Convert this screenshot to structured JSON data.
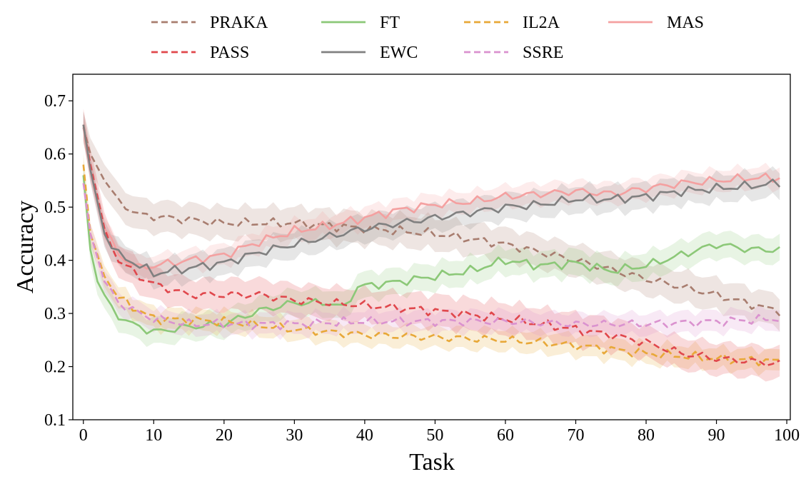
{
  "chart_data": {
    "type": "line",
    "title": "",
    "xlabel": "Task",
    "ylabel": "Accuracy",
    "xlim": [
      -1.5,
      100.5
    ],
    "ylim": [
      0.1,
      0.75
    ],
    "xticks": [
      0,
      10,
      20,
      30,
      40,
      50,
      60,
      70,
      80,
      90,
      100
    ],
    "xtick_labels": [
      "0",
      "10",
      "20",
      "30",
      "40",
      "50",
      "60",
      "70",
      "80",
      "90",
      "100"
    ],
    "yticks": [
      0.1,
      0.2,
      0.3,
      0.4,
      0.5,
      0.6,
      0.7
    ],
    "ytick_labels": [
      "0.1",
      "0.2",
      "0.3",
      "0.4",
      "0.5",
      "0.6",
      "0.7"
    ],
    "grid": false,
    "legend_placement": "top, outside plot, 4 columns",
    "shaded_band": "spread around each series mean",
    "series": [
      {
        "name": "PRAKA",
        "color": "#a87d6f",
        "dash": "dashed",
        "band": 0.03,
        "anchors": [
          [
            0,
            0.65
          ],
          [
            1,
            0.6
          ],
          [
            3,
            0.55
          ],
          [
            5,
            0.51
          ],
          [
            8,
            0.485
          ],
          [
            12,
            0.48
          ],
          [
            20,
            0.47
          ],
          [
            30,
            0.47
          ],
          [
            40,
            0.46
          ],
          [
            50,
            0.45
          ],
          [
            60,
            0.43
          ],
          [
            70,
            0.4
          ],
          [
            80,
            0.365
          ],
          [
            90,
            0.335
          ],
          [
            97,
            0.31
          ],
          [
            99,
            0.305
          ]
        ]
      },
      {
        "name": "FT",
        "color": "#8cc878",
        "dash": "solid",
        "band": 0.025,
        "anchors": [
          [
            0,
            0.56
          ],
          [
            1,
            0.42
          ],
          [
            2,
            0.36
          ],
          [
            4,
            0.31
          ],
          [
            6,
            0.285
          ],
          [
            10,
            0.265
          ],
          [
            15,
            0.275
          ],
          [
            20,
            0.28
          ],
          [
            25,
            0.305
          ],
          [
            30,
            0.32
          ],
          [
            35,
            0.32
          ],
          [
            37,
            0.31
          ],
          [
            39,
            0.35
          ],
          [
            45,
            0.36
          ],
          [
            50,
            0.37
          ],
          [
            55,
            0.38
          ],
          [
            60,
            0.4
          ],
          [
            65,
            0.39
          ],
          [
            70,
            0.395
          ],
          [
            75,
            0.38
          ],
          [
            80,
            0.39
          ],
          [
            85,
            0.41
          ],
          [
            90,
            0.43
          ],
          [
            95,
            0.42
          ],
          [
            99,
            0.42
          ]
        ]
      },
      {
        "name": "IL2A",
        "color": "#e8a838",
        "dash": "dashed",
        "band": 0.02,
        "anchors": [
          [
            0,
            0.58
          ],
          [
            1,
            0.45
          ],
          [
            3,
            0.37
          ],
          [
            5,
            0.33
          ],
          [
            8,
            0.305
          ],
          [
            10,
            0.29
          ],
          [
            20,
            0.285
          ],
          [
            30,
            0.27
          ],
          [
            40,
            0.26
          ],
          [
            50,
            0.255
          ],
          [
            60,
            0.25
          ],
          [
            70,
            0.24
          ],
          [
            80,
            0.225
          ],
          [
            90,
            0.215
          ],
          [
            99,
            0.21
          ]
        ]
      },
      {
        "name": "MAS",
        "color": "#f4a0a0",
        "dash": "solid",
        "band": 0.02,
        "anchors": [
          [
            0,
            0.65
          ],
          [
            1,
            0.57
          ],
          [
            3,
            0.46
          ],
          [
            5,
            0.41
          ],
          [
            8,
            0.385
          ],
          [
            10,
            0.39
          ],
          [
            15,
            0.4
          ],
          [
            20,
            0.41
          ],
          [
            25,
            0.435
          ],
          [
            30,
            0.455
          ],
          [
            35,
            0.465
          ],
          [
            40,
            0.48
          ],
          [
            45,
            0.495
          ],
          [
            50,
            0.505
          ],
          [
            55,
            0.51
          ],
          [
            60,
            0.52
          ],
          [
            65,
            0.525
          ],
          [
            70,
            0.53
          ],
          [
            75,
            0.525
          ],
          [
            80,
            0.535
          ],
          [
            85,
            0.545
          ],
          [
            90,
            0.55
          ],
          [
            95,
            0.555
          ],
          [
            99,
            0.555
          ]
        ]
      },
      {
        "name": "PASS",
        "color": "#e0474c",
        "dash": "dashed",
        "band": 0.03,
        "anchors": [
          [
            0,
            0.655
          ],
          [
            1,
            0.58
          ],
          [
            3,
            0.46
          ],
          [
            5,
            0.4
          ],
          [
            8,
            0.37
          ],
          [
            10,
            0.355
          ],
          [
            15,
            0.335
          ],
          [
            20,
            0.335
          ],
          [
            25,
            0.335
          ],
          [
            30,
            0.325
          ],
          [
            40,
            0.315
          ],
          [
            50,
            0.305
          ],
          [
            60,
            0.29
          ],
          [
            70,
            0.27
          ],
          [
            75,
            0.26
          ],
          [
            80,
            0.245
          ],
          [
            85,
            0.225
          ],
          [
            90,
            0.215
          ],
          [
            95,
            0.21
          ],
          [
            99,
            0.205
          ]
        ]
      },
      {
        "name": "EWC",
        "color": "#808080",
        "dash": "solid",
        "band": 0.025,
        "anchors": [
          [
            0,
            0.655
          ],
          [
            1,
            0.57
          ],
          [
            3,
            0.45
          ],
          [
            5,
            0.41
          ],
          [
            8,
            0.39
          ],
          [
            10,
            0.375
          ],
          [
            15,
            0.385
          ],
          [
            20,
            0.395
          ],
          [
            25,
            0.415
          ],
          [
            30,
            0.43
          ],
          [
            35,
            0.445
          ],
          [
            40,
            0.46
          ],
          [
            45,
            0.47
          ],
          [
            50,
            0.48
          ],
          [
            55,
            0.49
          ],
          [
            60,
            0.5
          ],
          [
            65,
            0.505
          ],
          [
            70,
            0.515
          ],
          [
            75,
            0.515
          ],
          [
            80,
            0.52
          ],
          [
            85,
            0.53
          ],
          [
            90,
            0.535
          ],
          [
            95,
            0.54
          ],
          [
            99,
            0.545
          ]
        ]
      },
      {
        "name": "SSRE",
        "color": "#da92cf",
        "dash": "dashed",
        "band": 0.02,
        "anchors": [
          [
            0,
            0.545
          ],
          [
            1,
            0.45
          ],
          [
            3,
            0.36
          ],
          [
            5,
            0.32
          ],
          [
            8,
            0.3
          ],
          [
            10,
            0.29
          ],
          [
            15,
            0.28
          ],
          [
            20,
            0.28
          ],
          [
            30,
            0.28
          ],
          [
            40,
            0.285
          ],
          [
            50,
            0.285
          ],
          [
            60,
            0.285
          ],
          [
            70,
            0.28
          ],
          [
            80,
            0.28
          ],
          [
            90,
            0.285
          ],
          [
            99,
            0.29
          ]
        ]
      }
    ]
  }
}
